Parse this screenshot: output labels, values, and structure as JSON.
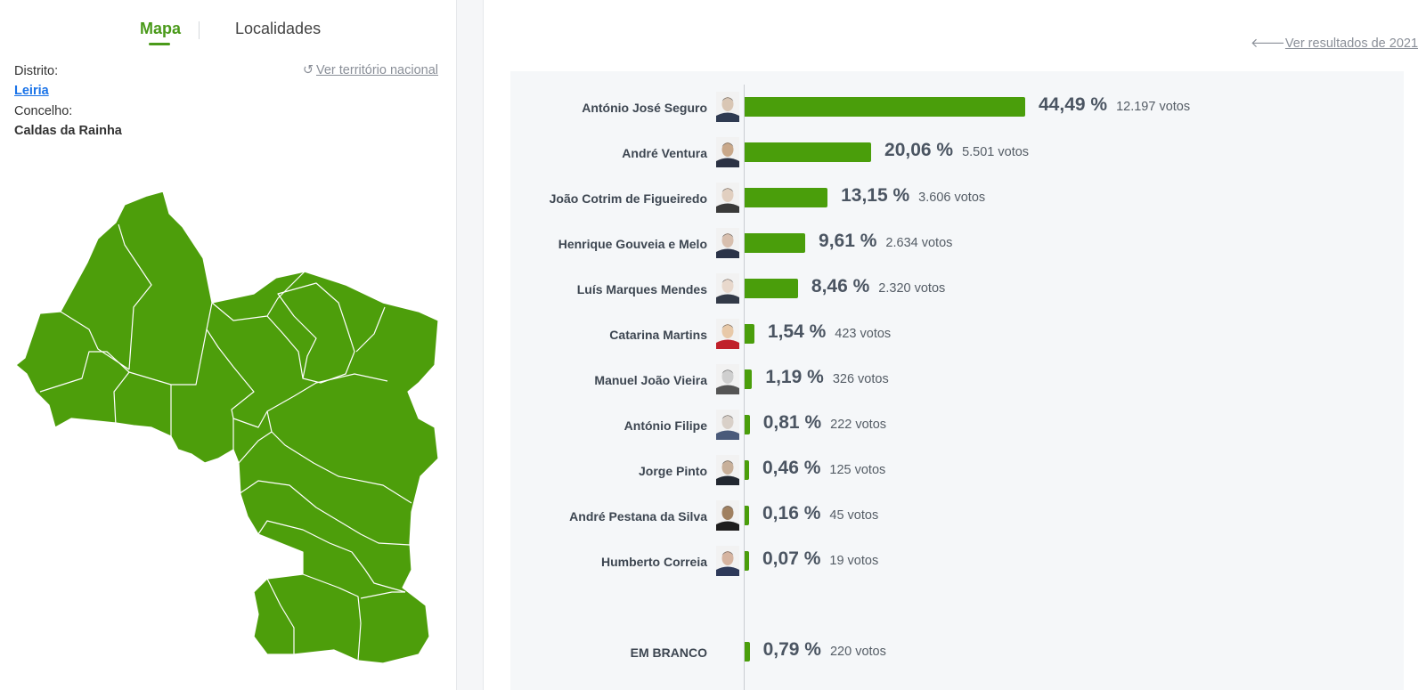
{
  "tabs": {
    "mapa": "Mapa",
    "localidades": "Localidades"
  },
  "filters": {
    "distrito_label": "Distrito:",
    "distrito_value": "Leiria",
    "concelho_label": "Concelho:",
    "concelho_value": "Caldas da Rainha",
    "nacional_link": "Ver território nacional"
  },
  "back_link": "Ver resultados de 2021",
  "colors": {
    "accent": "#4a9a1a",
    "bar": "#4a9e0b",
    "map_fill": "#4d9e0b"
  },
  "results": [
    {
      "name": "António José Seguro",
      "pct": "44,49 %",
      "votes": "12.197 votos",
      "share": 44.49
    },
    {
      "name": "André Ventura",
      "pct": "20,06 %",
      "votes": "5.501 votos",
      "share": 20.06
    },
    {
      "name": "João Cotrim de Figueiredo",
      "pct": "13,15 %",
      "votes": "3.606 votos",
      "share": 13.15
    },
    {
      "name": "Henrique Gouveia e Melo",
      "pct": "9,61 %",
      "votes": "2.634 votos",
      "share": 9.61
    },
    {
      "name": "Luís Marques Mendes",
      "pct": "8,46 %",
      "votes": "2.320 votos",
      "share": 8.46
    },
    {
      "name": "Catarina Martins",
      "pct": "1,54 %",
      "votes": "423 votos",
      "share": 1.54
    },
    {
      "name": "Manuel João Vieira",
      "pct": "1,19 %",
      "votes": "326 votos",
      "share": 1.19
    },
    {
      "name": "António Filipe",
      "pct": "0,81 %",
      "votes": "222 votos",
      "share": 0.81
    },
    {
      "name": "Jorge Pinto",
      "pct": "0,46 %",
      "votes": "125 votos",
      "share": 0.46
    },
    {
      "name": "André Pestana da Silva",
      "pct": "0,16 %",
      "votes": "45 votos",
      "share": 0.16
    },
    {
      "name": "Humberto Correia",
      "pct": "0,07 %",
      "votes": "19 votos",
      "share": 0.07
    }
  ],
  "blank": {
    "name": "EM BRANCO",
    "pct": "0,79 %",
    "votes": "220 votos",
    "share": 0.79
  }
}
